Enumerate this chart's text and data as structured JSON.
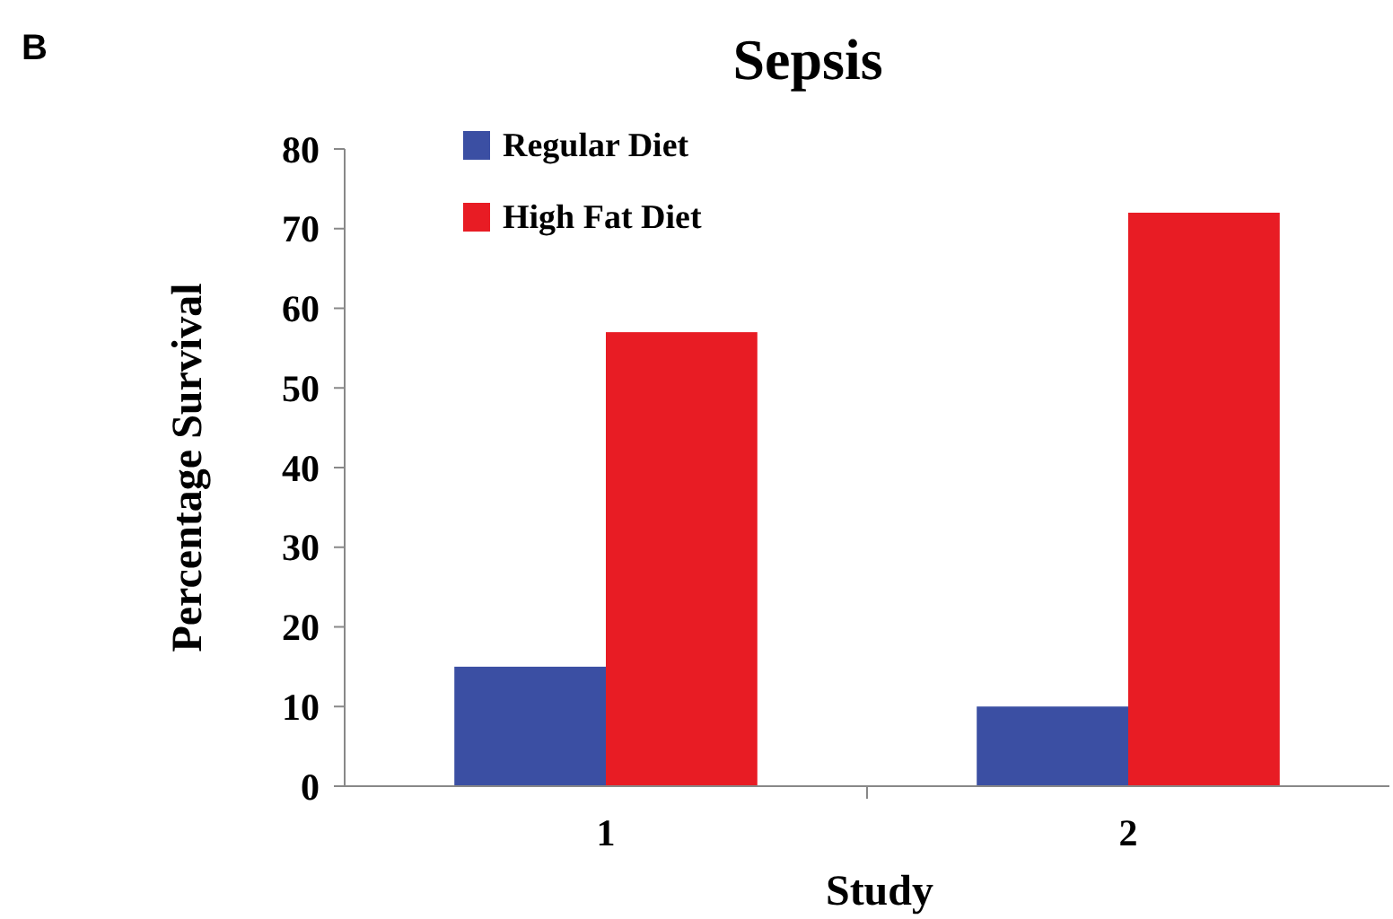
{
  "chart_data": {
    "type": "bar",
    "title": "Sepsis",
    "xlabel": "Study",
    "ylabel": "Percentage Survival",
    "annotations": [
      "B"
    ],
    "categories": [
      "1",
      "2"
    ],
    "series": [
      {
        "name": "Regular Diet",
        "color": "#3b4fa3",
        "values": [
          15,
          10
        ]
      },
      {
        "name": "High Fat Diet",
        "color": "#e81c24",
        "values": [
          57,
          72
        ]
      }
    ],
    "ylim": [
      0,
      80
    ],
    "yticks": [
      0,
      10,
      20,
      30,
      40,
      50,
      60,
      70,
      80
    ],
    "grid": false,
    "legend": "top left"
  }
}
